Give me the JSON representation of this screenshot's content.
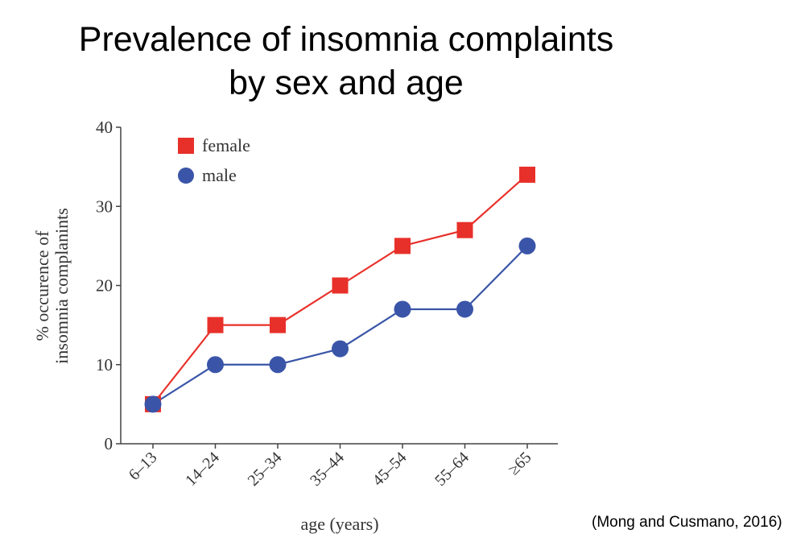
{
  "slide": {
    "title_line1": "Prevalence of insomnia complaints",
    "title_line2": "by sex and age",
    "citation": "(Mong and Cusmano, 2016)"
  },
  "chart_data": {
    "type": "line",
    "title": "",
    "xlabel": "age (years)",
    "ylabel_line1": "% occurence of",
    "ylabel_line2": "insomnia complanints",
    "categories": [
      "6–13",
      "14–24",
      "25–34",
      "35–44",
      "45–54",
      "55–64",
      "≥65"
    ],
    "ylim": [
      0,
      40
    ],
    "yticks": [
      "0",
      "10",
      "20",
      "30",
      "40"
    ],
    "grid": false,
    "legend_position": "top-left",
    "series": [
      {
        "name": "female",
        "marker": "square",
        "color": "#e8302a",
        "values": [
          5,
          15,
          15,
          20,
          25,
          27,
          34
        ]
      },
      {
        "name": "male",
        "marker": "circle",
        "color": "#3a55a8",
        "values": [
          5,
          10,
          10,
          12,
          17,
          17,
          25
        ]
      }
    ]
  }
}
